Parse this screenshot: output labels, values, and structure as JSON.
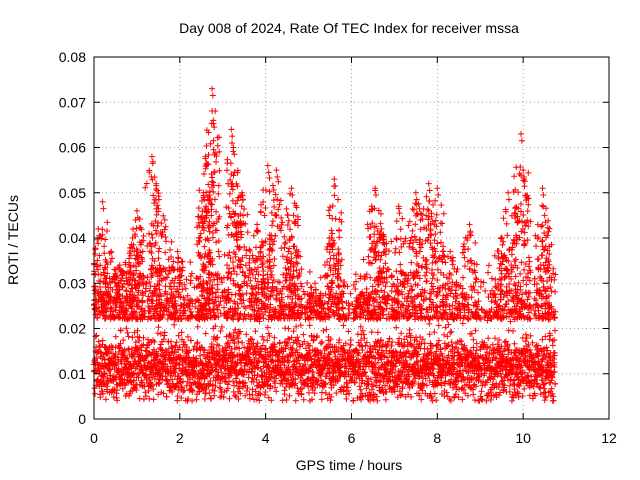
{
  "chart_data": {
    "type": "scatter",
    "title": "Day 008 of 2024, Rate Of TEC Index for receiver mssa",
    "xlabel": "GPS time / hours",
    "ylabel": "ROTI / TECUs",
    "xlim": [
      0,
      12
    ],
    "ylim": [
      0,
      0.08
    ],
    "x_ticks": [
      0,
      2,
      4,
      6,
      8,
      10,
      12
    ],
    "x_tick_labels": [
      "0",
      "2",
      "4",
      "6",
      "8",
      "10",
      "12"
    ],
    "y_ticks": [
      0,
      0.01,
      0.02,
      0.03,
      0.04,
      0.05,
      0.06,
      0.07,
      0.08
    ],
    "y_tick_labels": [
      "0",
      "0.01",
      "0.02",
      "0.03",
      "0.04",
      "0.05",
      "0.06",
      "0.07",
      "0.08"
    ],
    "grid": true,
    "marker": "+",
    "marker_color": "#ff0000",
    "series": [
      {
        "name": "ROTI",
        "x_range": [
          0,
          10.75
        ],
        "baseline_band": [
          0.004,
          0.022
        ],
        "typical_level": 0.012,
        "peaks": [
          {
            "x": 0.1,
            "y": 0.042
          },
          {
            "x": 0.2,
            "y": 0.048
          },
          {
            "x": 0.4,
            "y": 0.037
          },
          {
            "x": 0.6,
            "y": 0.034
          },
          {
            "x": 0.9,
            "y": 0.04
          },
          {
            "x": 1.0,
            "y": 0.046
          },
          {
            "x": 1.35,
            "y": 0.058
          },
          {
            "x": 1.45,
            "y": 0.052
          },
          {
            "x": 1.65,
            "y": 0.044
          },
          {
            "x": 1.95,
            "y": 0.037
          },
          {
            "x": 2.55,
            "y": 0.05
          },
          {
            "x": 2.6,
            "y": 0.058
          },
          {
            "x": 2.75,
            "y": 0.073
          },
          {
            "x": 2.78,
            "y": 0.066
          },
          {
            "x": 3.2,
            "y": 0.064
          },
          {
            "x": 3.25,
            "y": 0.06
          },
          {
            "x": 3.45,
            "y": 0.05
          },
          {
            "x": 3.8,
            "y": 0.043
          },
          {
            "x": 4.05,
            "y": 0.056
          },
          {
            "x": 4.25,
            "y": 0.055
          },
          {
            "x": 4.6,
            "y": 0.051
          },
          {
            "x": 4.65,
            "y": 0.045
          },
          {
            "x": 5.15,
            "y": 0.03
          },
          {
            "x": 5.6,
            "y": 0.053
          },
          {
            "x": 5.55,
            "y": 0.041
          },
          {
            "x": 6.25,
            "y": 0.028
          },
          {
            "x": 6.55,
            "y": 0.051
          },
          {
            "x": 6.7,
            "y": 0.042
          },
          {
            "x": 7.1,
            "y": 0.047
          },
          {
            "x": 7.5,
            "y": 0.05
          },
          {
            "x": 7.8,
            "y": 0.052
          },
          {
            "x": 8.0,
            "y": 0.051
          },
          {
            "x": 8.3,
            "y": 0.037
          },
          {
            "x": 8.75,
            "y": 0.043
          },
          {
            "x": 9.5,
            "y": 0.04
          },
          {
            "x": 9.65,
            "y": 0.05
          },
          {
            "x": 9.95,
            "y": 0.063
          },
          {
            "x": 10.0,
            "y": 0.055
          },
          {
            "x": 10.45,
            "y": 0.051
          },
          {
            "x": 10.5,
            "y": 0.045
          }
        ]
      }
    ]
  }
}
